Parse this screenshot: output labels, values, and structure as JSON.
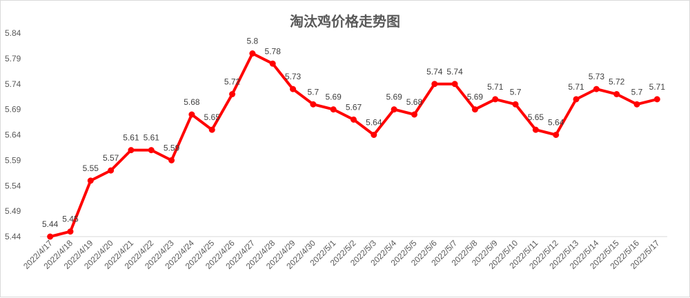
{
  "chart_data": {
    "type": "line",
    "title": "淘汰鸡价格走势图",
    "xlabel": "",
    "ylabel": "",
    "ylim": [
      5.44,
      5.84
    ],
    "yticks": [
      "5.44",
      "5.49",
      "5.54",
      "5.59",
      "5.64",
      "5.69",
      "5.74",
      "5.79",
      "5.84"
    ],
    "grid": false,
    "legend": "none",
    "color": "#ff0000",
    "categories": [
      "2022/4/17",
      "2022/4/18",
      "2022/4/19",
      "2022/4/20",
      "2022/4/21",
      "2022/4/22",
      "2022/4/23",
      "2022/4/24",
      "2022/4/25",
      "2022/4/26",
      "2022/4/27",
      "2022/4/28",
      "2022/4/29",
      "2022/4/30",
      "2022/5/1",
      "2022/5/2",
      "2022/5/3",
      "2022/5/4",
      "2022/5/5",
      "2022/5/6",
      "2022/5/7",
      "2022/5/8",
      "2022/5/9",
      "2022/5/10",
      "2022/5/11",
      "2022/5/12",
      "2022/5/13",
      "2022/5/14",
      "2022/5/15",
      "2022/5/16",
      "2022/5/17"
    ],
    "values": [
      5.44,
      5.45,
      5.55,
      5.57,
      5.61,
      5.61,
      5.59,
      5.68,
      5.65,
      5.72,
      5.8,
      5.78,
      5.73,
      5.7,
      5.69,
      5.67,
      5.64,
      5.69,
      5.68,
      5.74,
      5.74,
      5.69,
      5.71,
      5.7,
      5.65,
      5.64,
      5.71,
      5.73,
      5.72,
      5.7,
      5.71
    ],
    "labels": [
      "5.44",
      "5.45",
      "5.55",
      "5.57",
      "5.61",
      "5.61",
      "5.59",
      "5.68",
      "5.65",
      "5.72",
      "5.8",
      "5.78",
      "5.73",
      "5.7",
      "5.69",
      "5.67",
      "5.64",
      "5.69",
      "5.68",
      "5.74",
      "5.74",
      "5.69",
      "5.71",
      "5.7",
      "5.65",
      "5.64",
      "5.71",
      "5.73",
      "5.72",
      "5.7",
      "5.71"
    ]
  }
}
